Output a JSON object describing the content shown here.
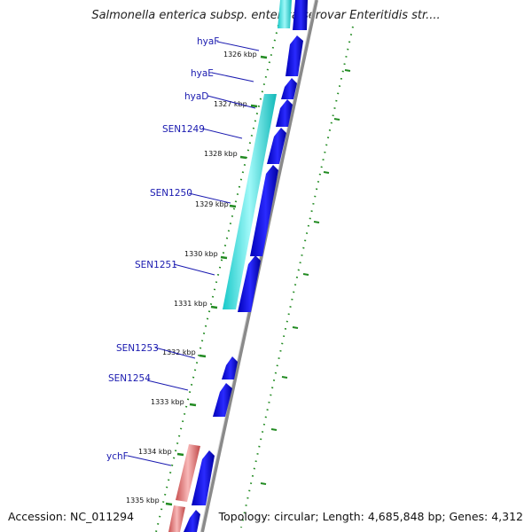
{
  "title": "Salmonella enterica subsp. enterica serovar Enteritidis str....",
  "footer": {
    "accession": "Accession: NC_011294",
    "summary": "Topology: circular; Length: 4,685,848 bp; Genes: 4,312"
  },
  "colors": {
    "cds_forward": "#0000dd",
    "feature_cyan": "#22e6e6",
    "feature_red": "#e07070",
    "tick_green": "#228b22",
    "backbone": "#888888",
    "label_blue": "#1a1ab0"
  },
  "kbp_ticks": [
    "1326 kbp",
    "1327 kbp",
    "1328 kbp",
    "1329 kbp",
    "1330 kbp",
    "1331 kbp",
    "1332 kbp",
    "1333 kbp",
    "1334 kbp",
    "1335 kbp"
  ],
  "gene_labels": [
    "hyaF",
    "hyaE",
    "hyaD",
    "SEN1249",
    "SEN1250",
    "SEN1251",
    "SEN1253",
    "SEN1254",
    "ychF"
  ]
}
